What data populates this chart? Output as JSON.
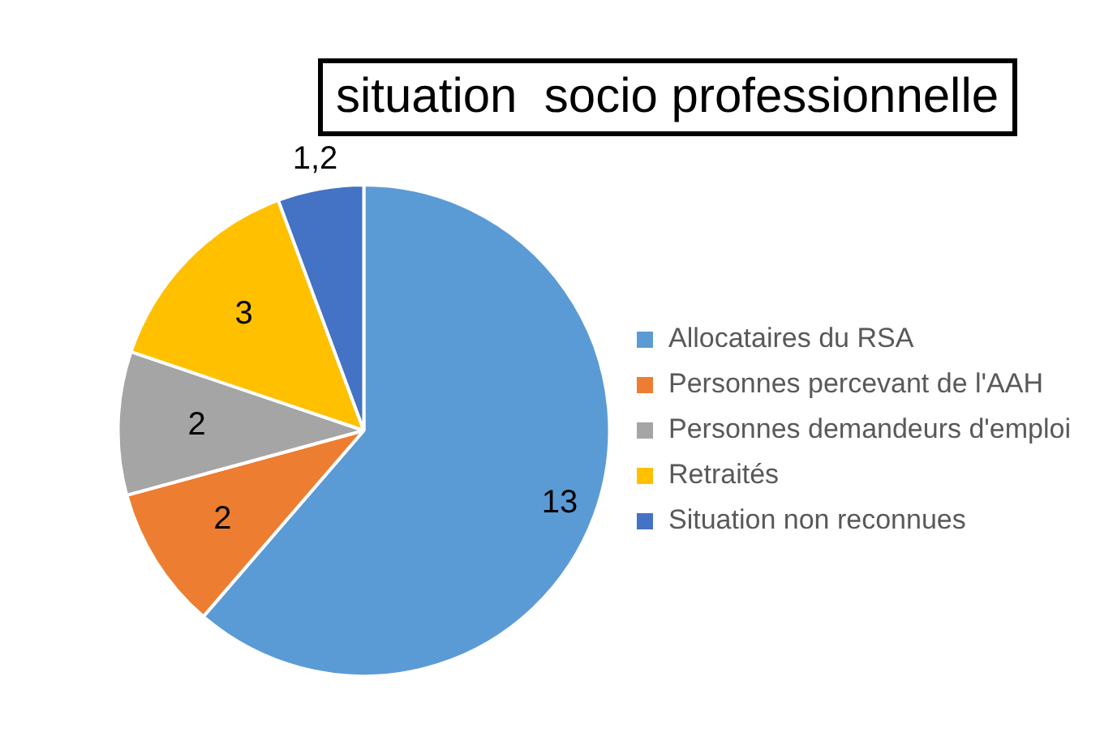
{
  "chart_data": {
    "type": "pie",
    "title": "situation  socio professionnelle",
    "categories": [
      "Allocataires du RSA",
      "Personnes percevant de l'AAH",
      "Personnes demandeurs d'emploi",
      "Retraités",
      "Situation non reconnues"
    ],
    "values": [
      13,
      2,
      2,
      3,
      1.2
    ],
    "value_labels": [
      "13",
      "2",
      "2",
      "3",
      "1,2"
    ],
    "colors": [
      "#5b9bd5",
      "#ed7d31",
      "#a5a5a5",
      "#ffc000",
      "#4472c4"
    ],
    "legend": "right"
  }
}
